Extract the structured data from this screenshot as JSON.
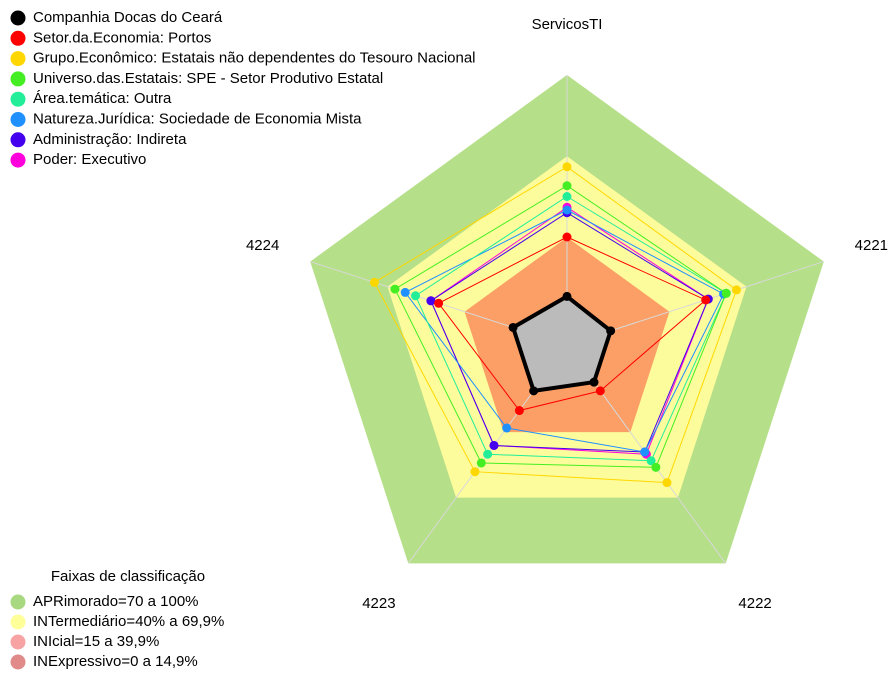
{
  "chart_data": {
    "type": "radar",
    "categories": [
      "ServicosTI",
      "4221",
      "4222",
      "4223",
      "4224"
    ],
    "rlim": [
      0,
      100
    ],
    "series": [
      {
        "name": "Companhia Docas do Ceará",
        "color": "#000000",
        "fill": "#bbbbbb",
        "values": [
          18,
          17,
          17,
          21,
          21
        ]
      },
      {
        "name": "Setor.da.Economia: Portos",
        "color": "#ff0000",
        "values": [
          40,
          54,
          21,
          30,
          50
        ]
      },
      {
        "name": "Grupo.Econômico: Estatais não dependentes do Tesouro Nacional",
        "color": "#ffd700",
        "values": [
          66,
          66,
          63,
          58,
          75
        ]
      },
      {
        "name": "Universo.das.Estatais: SPE - Setor Produtivo Estatal",
        "color": "#44ee22",
        "values": [
          59,
          62,
          56,
          54,
          67
        ]
      },
      {
        "name": "Área.temática: Outra",
        "color": "#22ee99",
        "values": [
          55,
          62,
          53,
          50,
          59
        ]
      },
      {
        "name": "Natureza.Jurídica: Sociedade de Economia Mista",
        "color": "#1e90ff",
        "values": [
          50,
          61,
          49,
          38,
          63
        ]
      },
      {
        "name": "Administração: Indireta",
        "color": "#4400ee",
        "values": [
          49,
          55,
          49,
          46,
          53
        ]
      },
      {
        "name": "Poder: Executivo",
        "color": "#ff00dd",
        "values": [
          51,
          55,
          50,
          46,
          53
        ]
      }
    ],
    "bands_title": "Faixas de classificação",
    "bands": [
      {
        "label": "APRimorado=70 a 100%",
        "to": 100,
        "color": "#b5df88",
        "legend_color": "#a8d880"
      },
      {
        "label": "INTermediário=40% a 69,9%",
        "to": 69.9,
        "color": "#fdfc9c",
        "legend_color": "#ffff99"
      },
      {
        "label": "INIcial=15 a 39,9%",
        "to": 39.9,
        "color": "#fb9f66",
        "legend_color": "#f7a3a3"
      },
      {
        "label": "INExpressivo=0 a 14,9%",
        "to": 14.9,
        "color": "#e05a3c",
        "legend_color": "#e08a8a"
      }
    ]
  }
}
